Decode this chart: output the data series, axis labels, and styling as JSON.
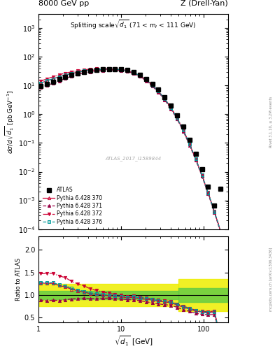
{
  "title_left": "8000 GeV pp",
  "title_right": "Z (Drell-Yan)",
  "panel_title": "Splitting scale $\\sqrt{d_1}$ (71 < m$_l$ < 111 GeV)",
  "watermark": "ATLAS_2017_I1589844",
  "rivet_label": "Rivet 3.1.10, ≥ 3.2M events",
  "mcplots_label": "mcplots.cern.ch [arXiv:1306.3436]",
  "xlabel": "sqrt{d_1} [GeV]",
  "ylabel_ratio": "Ratio to ATLAS",
  "xlim": [
    1.0,
    200.0
  ],
  "ylim_main": [
    0.0001,
    3000.0
  ],
  "ylim_ratio": [
    0.4,
    2.3
  ],
  "ratio_yticks": [
    0.5,
    1.0,
    1.5,
    2.0
  ],
  "atlas_x": [
    1.05,
    1.26,
    1.5,
    1.78,
    2.12,
    2.52,
    3.0,
    3.57,
    4.24,
    5.05,
    6.0,
    7.13,
    8.49,
    10.1,
    12.0,
    14.3,
    17.0,
    20.2,
    24.0,
    28.5,
    33.9,
    40.3,
    48.0,
    57.1,
    67.9,
    80.8,
    96.1,
    114.0,
    136.0,
    162.0
  ],
  "atlas_y": [
    9.5,
    11.5,
    13.5,
    16.5,
    19.5,
    23.0,
    26.5,
    29.5,
    32.5,
    34.5,
    36.0,
    37.0,
    37.5,
    36.5,
    34.0,
    29.0,
    23.5,
    17.0,
    11.5,
    7.2,
    4.0,
    2.0,
    0.92,
    0.37,
    0.13,
    0.042,
    0.012,
    0.003,
    0.00065,
    0.0025
  ],
  "py370_x": [
    1.05,
    1.26,
    1.5,
    1.78,
    2.12,
    2.52,
    3.0,
    3.57,
    4.24,
    5.05,
    6.0,
    7.13,
    8.49,
    10.1,
    12.0,
    14.3,
    17.0,
    20.2,
    24.0,
    28.5,
    33.9,
    40.3,
    48.0,
    57.1,
    67.9,
    80.8,
    96.1,
    114.0,
    136.0,
    162.0
  ],
  "py370_y": [
    12.0,
    14.5,
    17.0,
    20.0,
    23.0,
    26.0,
    29.0,
    31.5,
    33.5,
    35.0,
    36.0,
    36.5,
    36.5,
    35.0,
    32.0,
    27.5,
    21.5,
    15.5,
    10.2,
    6.2,
    3.4,
    1.65,
    0.72,
    0.27,
    0.09,
    0.027,
    0.0075,
    0.0018,
    0.0004,
    8.2e-05
  ],
  "py371_x": [
    1.05,
    1.26,
    1.5,
    1.78,
    2.12,
    2.52,
    3.0,
    3.57,
    4.24,
    5.05,
    6.0,
    7.13,
    8.49,
    10.1,
    12.0,
    14.3,
    17.0,
    20.2,
    24.0,
    28.5,
    33.9,
    40.3,
    48.0,
    57.1,
    67.9,
    80.8,
    96.1,
    114.0,
    136.0,
    162.0
  ],
  "py371_y": [
    8.5,
    10.0,
    12.0,
    14.5,
    17.5,
    21.0,
    24.5,
    27.5,
    30.0,
    32.0,
    33.5,
    34.5,
    34.5,
    33.5,
    30.5,
    26.0,
    20.5,
    14.5,
    9.5,
    5.8,
    3.15,
    1.55,
    0.67,
    0.25,
    0.083,
    0.025,
    0.0069,
    0.0017,
    0.00037,
    7.5e-05
  ],
  "py372_x": [
    1.05,
    1.26,
    1.5,
    1.78,
    2.12,
    2.52,
    3.0,
    3.57,
    4.24,
    5.05,
    6.0,
    7.13,
    8.49,
    10.1,
    12.0,
    14.3,
    17.0,
    20.2,
    24.0,
    28.5,
    33.9,
    40.3,
    48.0,
    57.1,
    67.9,
    80.8,
    96.1,
    114.0,
    136.0,
    162.0
  ],
  "py372_y": [
    14.0,
    17.0,
    20.0,
    23.5,
    27.0,
    30.0,
    33.0,
    35.5,
    37.0,
    38.0,
    38.5,
    38.5,
    38.0,
    36.5,
    33.0,
    28.5,
    22.5,
    16.0,
    10.5,
    6.4,
    3.5,
    1.72,
    0.74,
    0.28,
    0.092,
    0.028,
    0.0077,
    0.0019,
    0.00042,
    8.5e-05
  ],
  "py376_x": [
    1.05,
    1.26,
    1.5,
    1.78,
    2.12,
    2.52,
    3.0,
    3.57,
    4.24,
    5.05,
    6.0,
    7.13,
    8.49,
    10.1,
    12.0,
    14.3,
    17.0,
    20.2,
    24.0,
    28.5,
    33.9,
    40.3,
    48.0,
    57.1,
    67.9,
    80.8,
    96.1,
    114.0,
    136.0,
    162.0
  ],
  "py376_y": [
    12.2,
    14.7,
    17.2,
    20.3,
    23.5,
    26.5,
    29.5,
    32.0,
    34.0,
    35.5,
    36.5,
    37.0,
    37.0,
    35.5,
    32.5,
    28.0,
    22.0,
    15.8,
    10.4,
    6.3,
    3.45,
    1.68,
    0.73,
    0.275,
    0.091,
    0.0275,
    0.0076,
    0.00183,
    0.000405,
    8.3e-05
  ],
  "color_370": "#cc0033",
  "color_371": "#990044",
  "color_372": "#cc0033",
  "color_376": "#009999",
  "color_atlas": "#000000",
  "color_band_green": "#66cc44",
  "color_band_yellow": "#eeee00",
  "ratio_band_xbreak": 50.0,
  "ratio_band_green_lo1": 0.9,
  "ratio_band_green_hi1": 1.1,
  "ratio_band_green_lo2": 0.85,
  "ratio_band_green_hi2": 1.15,
  "ratio_band_yellow_lo1": 0.75,
  "ratio_band_yellow_hi1": 1.25,
  "ratio_band_yellow_lo2": 0.65,
  "ratio_band_yellow_hi2": 1.35
}
